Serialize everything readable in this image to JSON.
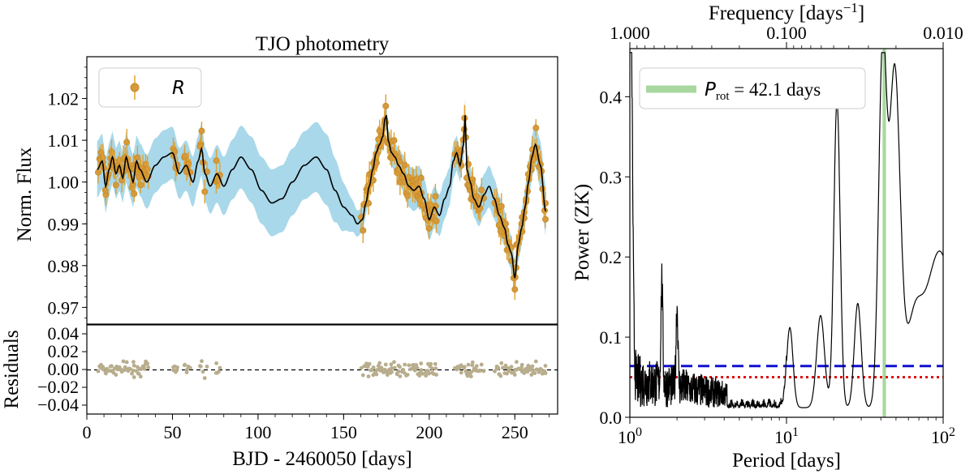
{
  "chart_data": [
    {
      "type": "scatter",
      "title": "TJO photometry",
      "ylabel": "Norm. Flux",
      "xlim": [
        0,
        275
      ],
      "ylim": [
        0.966,
        1.03
      ],
      "yticks": [
        "0.97",
        "0.98",
        "0.99",
        "1.00",
        "1.01",
        "1.02"
      ],
      "legend": {
        "label": "R",
        "placement": "top-left"
      },
      "colors": {
        "points": "#e0a030",
        "point_fill": "#d49a3c",
        "band": "#a8d8ea",
        "model": "#000000"
      },
      "model_knots": {
        "x": [
          6,
          9,
          11,
          13,
          15,
          17,
          19,
          21,
          23,
          25,
          27,
          29,
          31,
          35,
          40,
          45,
          50,
          54,
          58,
          62,
          65,
          67,
          69,
          72,
          76,
          80,
          85,
          90,
          96,
          102,
          108,
          114,
          120,
          127,
          134,
          140,
          145,
          150,
          155,
          158,
          161,
          163,
          165,
          167,
          169,
          171,
          173,
          174,
          175,
          176,
          178,
          180,
          182,
          185,
          188,
          191,
          194,
          197,
          200,
          203,
          206,
          209,
          212,
          214,
          216,
          218,
          220,
          221,
          222,
          224,
          226,
          229,
          232,
          235,
          238,
          241,
          244,
          246,
          248,
          250,
          252,
          254,
          256,
          258,
          260,
          262,
          265,
          268
        ],
        "y": [
          1.003,
          1.005,
          0.999,
          1.003,
          1.006,
          1.002,
          1.004,
          1.001,
          1.006,
          1.003,
          1.0,
          1.005,
          1.003,
          1.0,
          1.004,
          1.006,
          1.007,
          1.002,
          1.004,
          1.0,
          1.005,
          1.008,
          1.002,
          0.999,
          1.002,
          0.999,
          1.003,
          1.006,
          1.003,
          0.998,
          0.995,
          0.996,
          1.0,
          1.004,
          1.006,
          1.003,
          0.998,
          0.994,
          0.992,
          0.99,
          0.991,
          0.995,
          0.999,
          1.003,
          1.007,
          1.009,
          1.011,
          1.015,
          1.016,
          1.01,
          1.007,
          1.006,
          1.004,
          1.002,
          0.999,
          0.998,
          0.999,
          0.996,
          0.991,
          0.994,
          0.992,
          0.996,
          0.999,
          1.005,
          1.007,
          1.004,
          1.009,
          1.016,
          1.003,
          1.0,
          0.996,
          0.994,
          0.997,
          0.999,
          0.996,
          0.992,
          0.989,
          0.985,
          0.983,
          0.977,
          0.985,
          0.989,
          0.994,
          1.0,
          1.006,
          1.009,
          1.004,
          0.993
        ]
      },
      "band_halfwidth": {
        "x": [
          0,
          20,
          40,
          60,
          80,
          100,
          120,
          140,
          160,
          175,
          190,
          205,
          220,
          235,
          250,
          270
        ],
        "y": [
          0.007,
          0.006,
          0.0065,
          0.006,
          0.007,
          0.008,
          0.008,
          0.0085,
          0.003,
          0.003,
          0.005,
          0.005,
          0.004,
          0.005,
          0.004,
          0.006
        ]
      },
      "obs_windows": [
        [
          6,
          36
        ],
        [
          50,
          53
        ],
        [
          57,
          60
        ],
        [
          66,
          70
        ],
        [
          75,
          78
        ],
        [
          160,
          205
        ],
        [
          215,
          232
        ],
        [
          238,
          268
        ]
      ]
    },
    {
      "type": "scatter",
      "ylabel": "Residuals",
      "xlabel": "BJD - 2460050 [days]",
      "xlim": [
        0,
        275
      ],
      "ylim": [
        -0.05,
        0.05
      ],
      "xticks": [
        "0",
        "50",
        "100",
        "150",
        "200",
        "250"
      ],
      "yticks": [
        "−0.04",
        "−0.02",
        "0.00",
        "0.02",
        "0.04"
      ],
      "colors": {
        "points": "#b8ad8c",
        "zero_line": "#000000"
      }
    },
    {
      "type": "line",
      "xlabel": "Period [days]",
      "ylabel": "Power (ZK)",
      "x2label": "Frequency [days−1]",
      "xscale": "log",
      "xlim": [
        1,
        100
      ],
      "ylim": [
        0,
        0.46
      ],
      "xticks_major": [
        "100",
        "101",
        "102"
      ],
      "yticks": [
        "0.0",
        "0.1",
        "0.2",
        "0.3",
        "0.4"
      ],
      "top_xticks": [
        "1.000",
        "0.100",
        "0.010"
      ],
      "legend": {
        "label_main": "P",
        "label_sub": "rot",
        "label_rest": " = 42.1 days",
        "placement": "top-left"
      },
      "rotation_period": 42.1,
      "fap_levels": [
        {
          "value": 0.064,
          "style": "dashed",
          "color": "#1010d0"
        },
        {
          "value": 0.05,
          "style": "dotted",
          "color": "#e01010"
        }
      ],
      "colors": {
        "line": "#000000",
        "highlight": "#a8d8a0"
      },
      "peaks": [
        {
          "period": 1.0,
          "power": 0.45,
          "width": 0.012
        },
        {
          "period": 1.02,
          "power": 0.16,
          "width": 0.01
        },
        {
          "period": 1.6,
          "power": 0.13,
          "width": 0.006
        },
        {
          "period": 2.0,
          "power": 0.1,
          "width": 0.006
        },
        {
          "period": 10.5,
          "power": 0.1,
          "width": 0.02
        },
        {
          "period": 16.5,
          "power": 0.115,
          "width": 0.025
        },
        {
          "period": 21.0,
          "power": 0.383,
          "width": 0.02
        },
        {
          "period": 28.5,
          "power": 0.13,
          "width": 0.022
        },
        {
          "period": 41.0,
          "power": 0.43,
          "width": 0.025
        },
        {
          "period": 49.0,
          "power": 0.42,
          "width": 0.035
        },
        {
          "period": 65.0,
          "power": 0.09,
          "width": 0.05
        },
        {
          "period": 95.0,
          "power": 0.195,
          "width": 0.09
        }
      ]
    }
  ]
}
